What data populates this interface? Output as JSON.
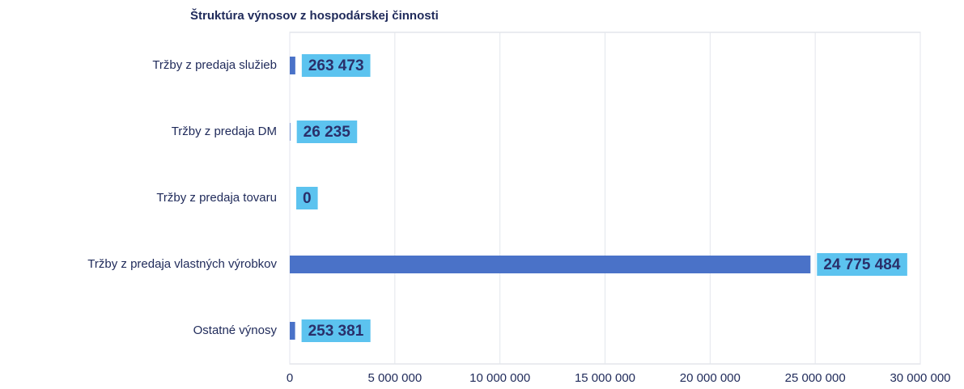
{
  "chart_data": {
    "type": "hbar",
    "title": "Štruktúra výnosov z hospodárskej činnosti",
    "categories": [
      "Tržby z predaja služieb",
      "Tržby z predaja DM",
      "Tržby z predaja tovaru",
      "Tržby z predaja vlastných výrobkov",
      "Ostatné výnosy"
    ],
    "values": [
      263473,
      26235,
      0,
      24775484,
      253381
    ],
    "value_labels": [
      "263 473",
      "26 235",
      "0",
      "24 775 484",
      "253 381"
    ],
    "color": "#4a72c8",
    "xlim": [
      0,
      30000000
    ],
    "xticks": [
      0,
      {
        "value": 5000000,
        "label": "5 000 000"
      },
      {
        "value": 10000000,
        "label": "10 000 000"
      },
      {
        "value": 15000000,
        "label": "15 000 000"
      },
      {
        "value": 20000000,
        "label": "20 000 000"
      },
      {
        "value": 25000000,
        "label": "25 000 000"
      },
      {
        "value": 30000000,
        "label": "30 000 000"
      }
    ],
    "grid": true
  }
}
